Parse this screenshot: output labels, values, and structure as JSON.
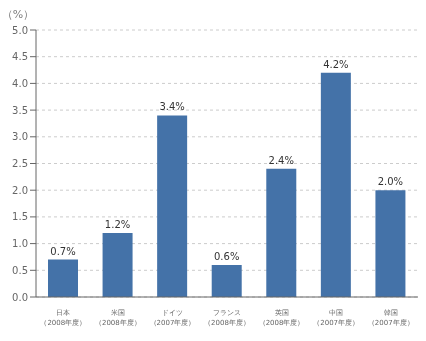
{
  "chart_data": {
    "type": "bar",
    "categories": [
      "日本\n（2008年度）",
      "米国\n（2008年度）",
      "ドイツ\n（2007年度）",
      "フランス\n（2008年度）",
      "英国\n（2008年度）",
      "中国\n（2007年度）",
      "韓国\n（2007年度）"
    ],
    "values": [
      0.7,
      1.2,
      3.4,
      0.6,
      2.4,
      4.2,
      2.0
    ],
    "value_labels": [
      "0.7%",
      "1.2%",
      "3.4%",
      "0.6%",
      "2.4%",
      "4.2%",
      "2.0%"
    ],
    "data_labels": true,
    "color": "#4472A8",
    "ylabel": "（%）",
    "ylim": [
      0,
      5.0
    ],
    "yticks": [
      {
        "value": 0,
        "label": "0.0"
      },
      0.5,
      {
        "value": 1,
        "label": "1.0"
      },
      1.5,
      {
        "value": 2,
        "label": "2.0"
      },
      2.5,
      {
        "value": 3,
        "label": "3.0"
      },
      3.5,
      {
        "value": 4,
        "label": "4.0"
      },
      4.5,
      {
        "value": 5,
        "label": "5.0"
      }
    ],
    "grid": true
  }
}
